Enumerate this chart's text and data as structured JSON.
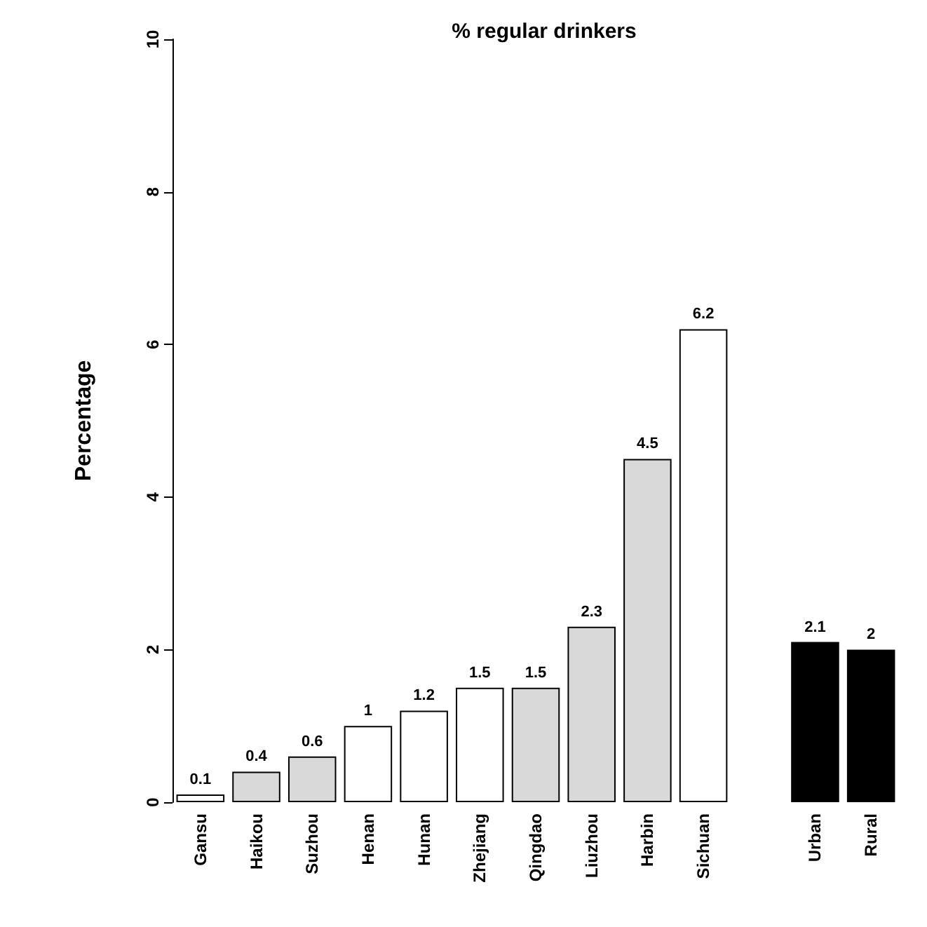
{
  "chart_data": {
    "type": "bar",
    "title": "% regular drinkers",
    "ylabel": "Percentage",
    "categories": [
      "Gansu",
      "Haikou",
      "Suzhou",
      "Henan",
      "Hunan",
      "Zhejiang",
      "Qingdao",
      "Liuzhou",
      "Harbin",
      "Sichuan",
      null,
      "Urban",
      "Rural"
    ],
    "values": [
      0.1,
      0.4,
      0.6,
      1,
      1.2,
      1.5,
      1.5,
      2.3,
      4.5,
      6.2,
      null,
      2.1,
      2
    ],
    "colors": [
      "#ffffff",
      "#d9d9d9",
      "#d9d9d9",
      "#ffffff",
      "#ffffff",
      "#ffffff",
      "#d9d9d9",
      "#d9d9d9",
      "#d9d9d9",
      "#ffffff",
      null,
      "#000000",
      "#000000"
    ],
    "data_labels": true,
    "ylim": [
      0,
      10
    ],
    "yticks": [
      0,
      2,
      4,
      6,
      8,
      10
    ]
  }
}
